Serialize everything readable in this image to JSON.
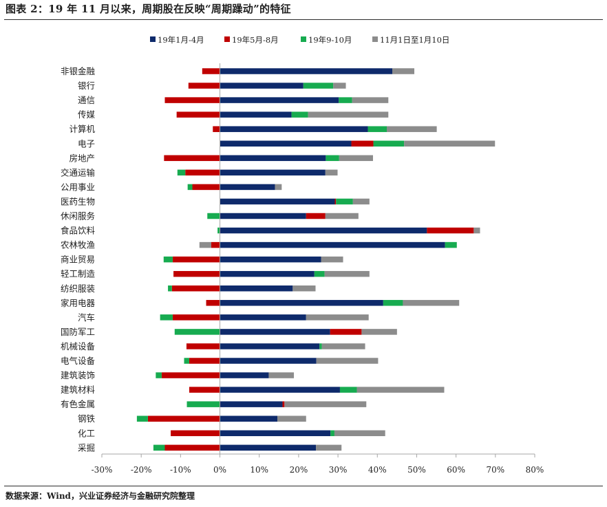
{
  "title": "图表 2：19 年 11 月以来，周期股在反映“周期躁动”的特征",
  "source": "数据来源：Wind，兴业证券经济与金融研究院整理",
  "chart_data": {
    "type": "bar",
    "orientation": "horizontal",
    "stacking": "diverging",
    "categories": [
      "非银金融",
      "银行",
      "通信",
      "传媒",
      "计算机",
      "电子",
      "房地产",
      "交通运输",
      "公用事业",
      "医药生物",
      "休闲服务",
      "食品饮料",
      "农林牧渔",
      "商业贸易",
      "轻工制造",
      "纺织服装",
      "家用电器",
      "汽车",
      "国防军工",
      "机械设备",
      "电气设备",
      "建筑装饰",
      "建筑材料",
      "有色金属",
      "钢铁",
      "化工",
      "采掘"
    ],
    "series": [
      {
        "name": "19年1月-4月",
        "color": "#0e2a6b",
        "values": [
          43.8,
          21.2,
          30.2,
          18.2,
          37.6,
          33.4,
          26.9,
          26.8,
          14.0,
          29.2,
          21.9,
          52.6,
          57.2,
          25.7,
          24.0,
          18.5,
          41.5,
          21.9,
          28.0,
          25.3,
          24.5,
          12.4,
          30.5,
          15.9,
          14.6,
          28.1,
          24.4
        ]
      },
      {
        "name": "19年5月-8月",
        "color": "#c00000",
        "values": [
          -4.5,
          -8.0,
          -14.0,
          -11.0,
          -1.8,
          5.6,
          -14.2,
          -8.8,
          -7.0,
          0.3,
          4.9,
          11.9,
          -2.2,
          -12.0,
          -11.8,
          -12.2,
          -3.5,
          -12.0,
          8.0,
          -8.5,
          -7.8,
          -14.8,
          -7.8,
          0.5,
          -18.3,
          -12.5,
          -14.0
        ]
      },
      {
        "name": "19年9-10月",
        "color": "#17ab50",
        "values": [
          0.0,
          7.6,
          3.4,
          4.2,
          4.8,
          7.8,
          3.4,
          -2.0,
          -1.2,
          4.3,
          -3.2,
          -0.6,
          3.0,
          -2.3,
          2.6,
          -1.0,
          5.0,
          -3.2,
          -11.5,
          0.6,
          -1.3,
          -1.5,
          4.3,
          -8.4,
          -2.8,
          1.0,
          -2.9
        ]
      },
      {
        "name": "11月1日至1月10日",
        "color": "#8c8c8c",
        "values": [
          5.6,
          3.2,
          9.2,
          20.4,
          12.7,
          23.1,
          8.6,
          3.1,
          1.7,
          4.2,
          8.4,
          1.6,
          -3.0,
          5.6,
          11.4,
          5.8,
          14.3,
          15.9,
          9.0,
          11.0,
          15.7,
          6.4,
          22.2,
          20.8,
          7.3,
          12.9,
          6.5
        ]
      }
    ],
    "xaxis": {
      "min": -30,
      "max": 80,
      "step": 10,
      "tick_labels": [
        "-30%",
        "-20%",
        "-10%",
        "0%",
        "10%",
        "20%",
        "30%",
        "40%",
        "50%",
        "60%",
        "70%",
        "80%"
      ]
    },
    "legend": {
      "placement": "top",
      "items": [
        "19年1月-4月",
        "19年5月-8月",
        "19年9-10月",
        "11月1日至1月10日"
      ]
    },
    "grid": false
  }
}
